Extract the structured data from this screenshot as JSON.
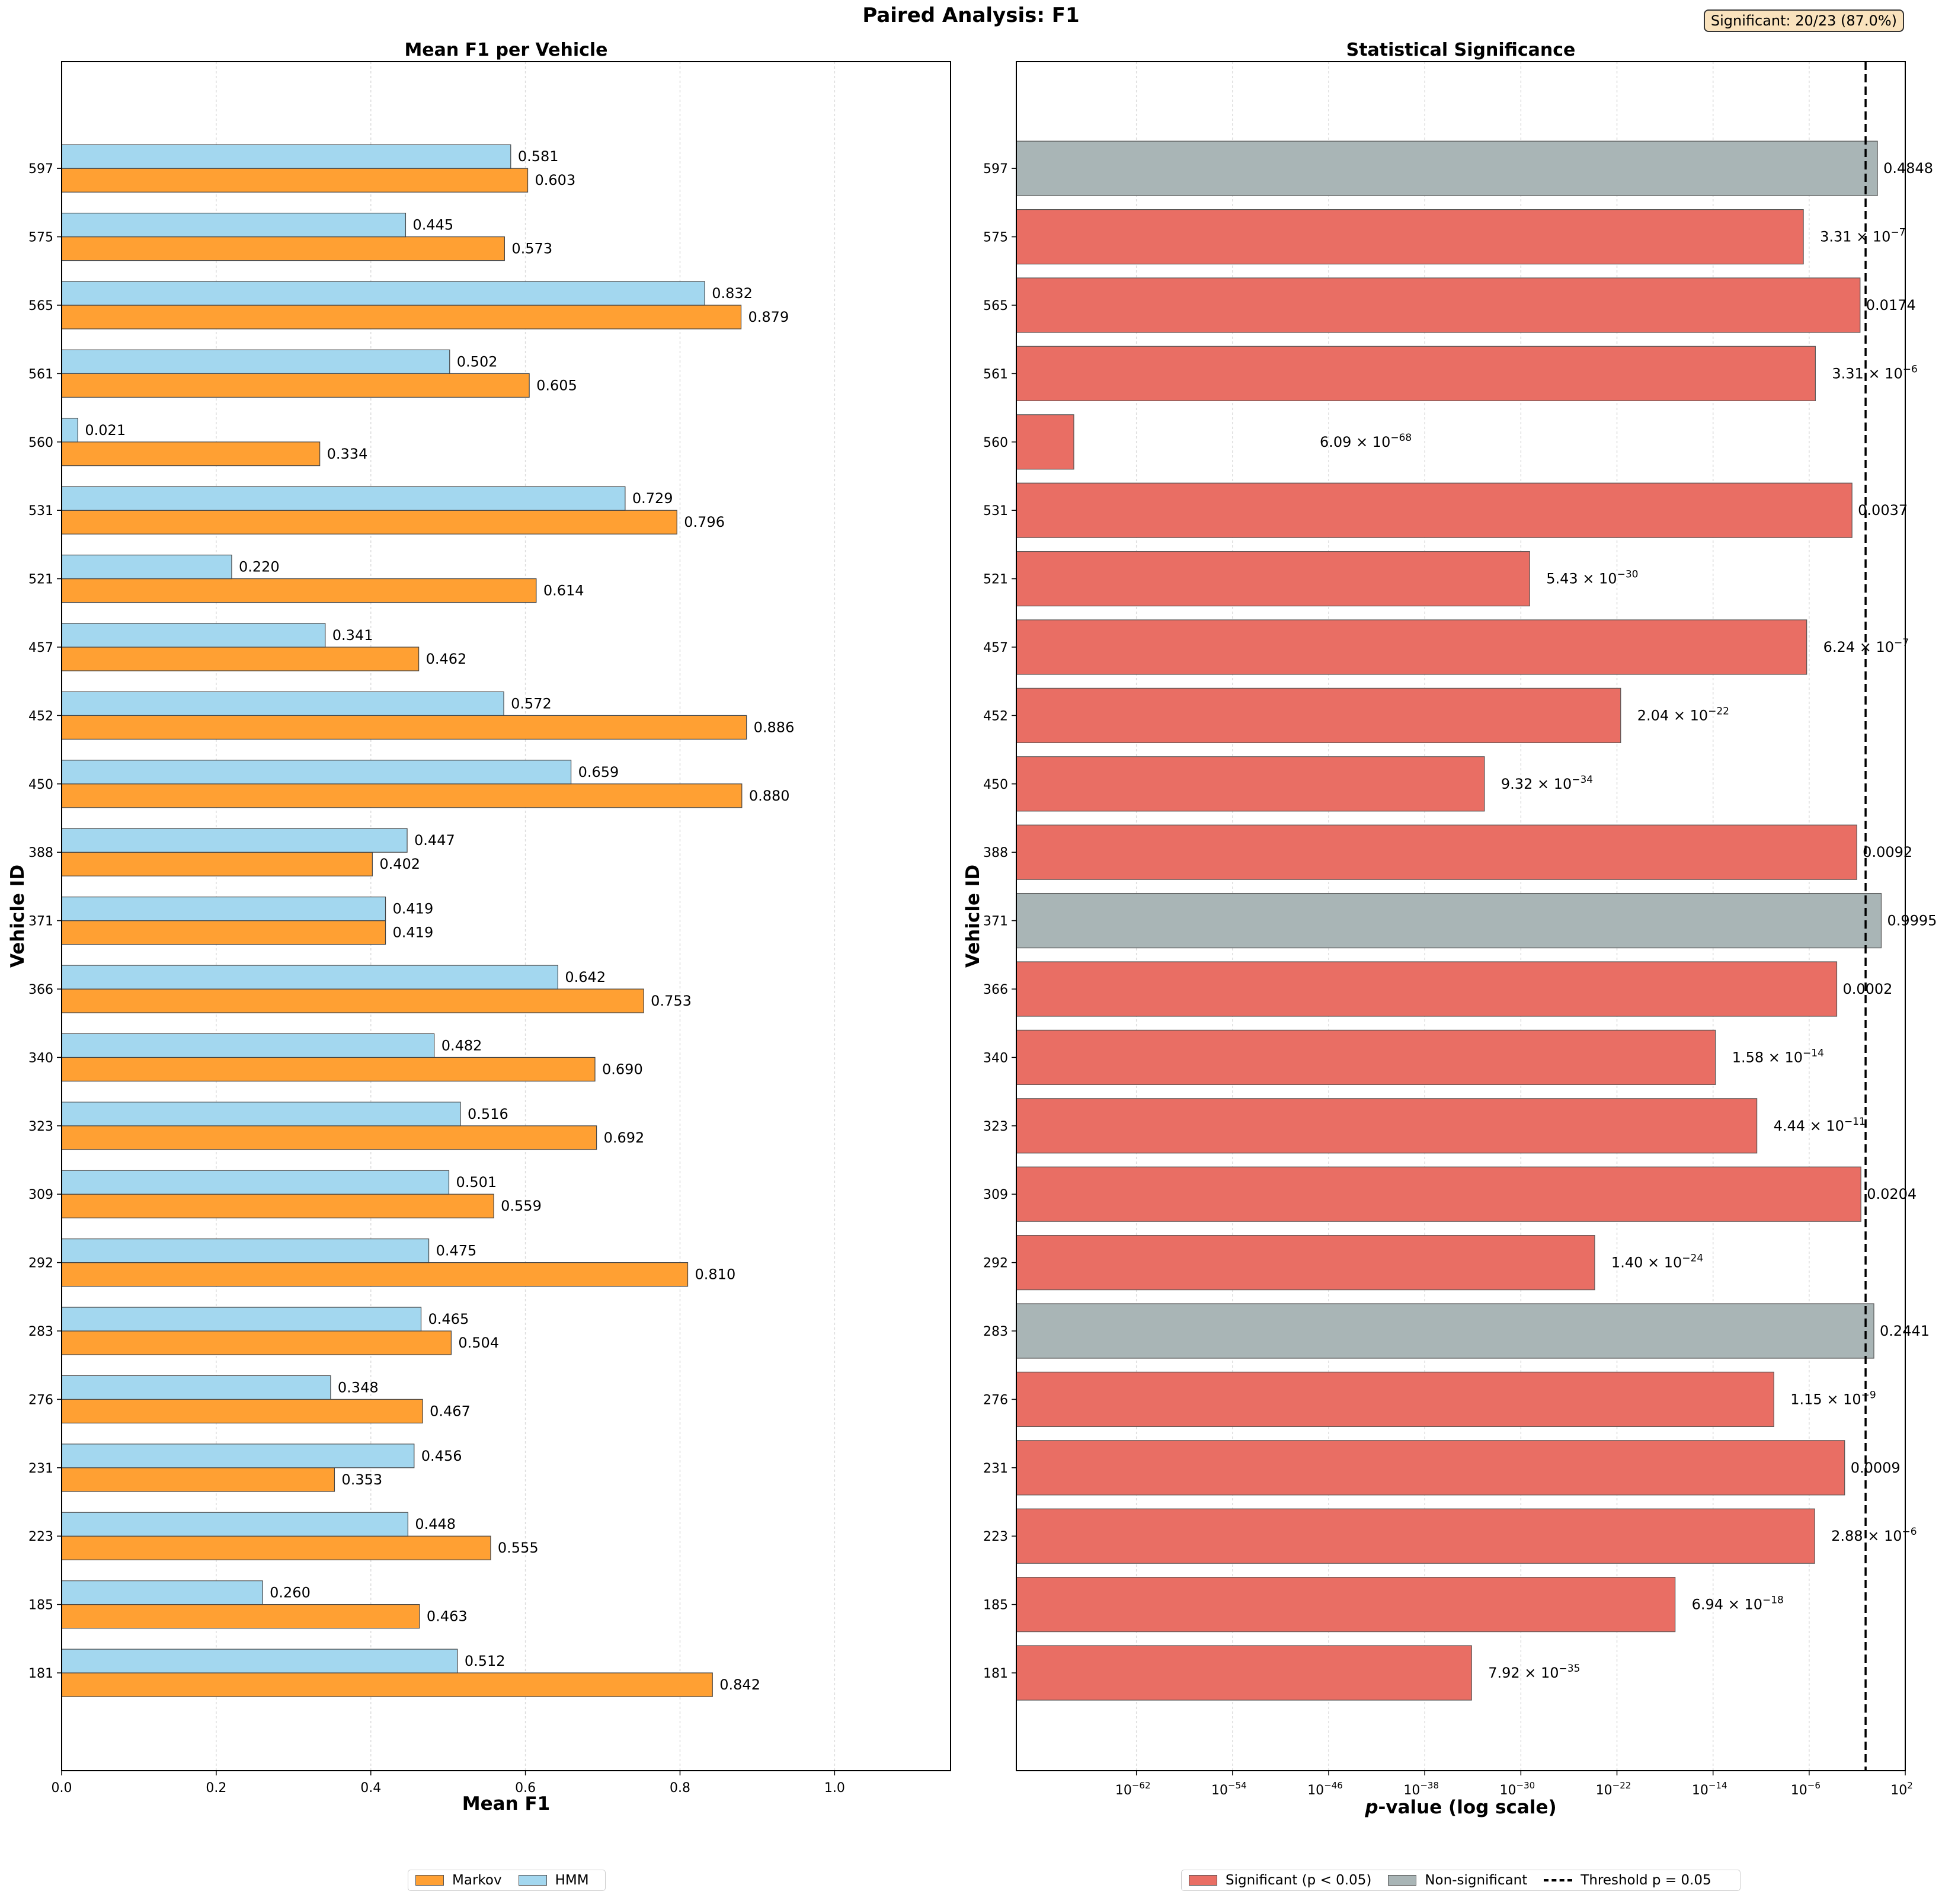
{
  "title": "Paired Analysis: F1",
  "badge": "Significant: 20/23 (87.0%)",
  "colors": {
    "markov": "#ffa033",
    "hmm": "#a3d7ef",
    "significant": "#e96e64",
    "nonsignificant": "#a9b5b6",
    "threshold": "#000000"
  },
  "legends": {
    "left": [
      {
        "label": "Markov",
        "color": "#ffa033"
      },
      {
        "label": "HMM",
        "color": "#a3d7ef"
      }
    ],
    "right": {
      "significant": "Significant (p < 0.05)",
      "nonsignificant": "Non-significant",
      "threshold": "Threshold p = 0.05"
    }
  },
  "chart_data": [
    {
      "type": "bar",
      "orientation": "horizontal",
      "title": "Mean F1 per Vehicle",
      "xlabel": "Mean F1",
      "ylabel": "Vehicle ID",
      "xlim": [
        0,
        1.15
      ],
      "xticks": [
        "0.0",
        "0.2",
        "0.4",
        "0.6",
        "0.8",
        "1.0"
      ],
      "grid": "vertical dotted",
      "legend": "bottom-center",
      "categories": [
        "181",
        "185",
        "223",
        "231",
        "276",
        "283",
        "292",
        "309",
        "323",
        "340",
        "366",
        "371",
        "388",
        "450",
        "452",
        "457",
        "521",
        "531",
        "560",
        "561",
        "565",
        "575",
        "597"
      ],
      "series": [
        {
          "name": "Markov",
          "values": [
            0.842,
            0.463,
            0.555,
            0.353,
            0.467,
            0.504,
            0.81,
            0.559,
            0.692,
            0.69,
            0.753,
            0.419,
            0.402,
            0.88,
            0.886,
            0.462,
            0.614,
            0.796,
            0.334,
            0.605,
            0.879,
            0.573,
            0.603
          ],
          "labels": [
            "0.842",
            "0.463",
            "0.555",
            "0.353",
            "0.467",
            "0.504",
            "0.810",
            "0.559",
            "0.692",
            "0.690",
            "0.753",
            "0.419",
            "0.402",
            "0.880",
            "0.886",
            "0.462",
            "0.614",
            "0.796",
            "0.334",
            "0.605",
            "0.879",
            "0.573",
            "0.603"
          ]
        },
        {
          "name": "HMM",
          "values": [
            0.512,
            0.26,
            0.448,
            0.456,
            0.348,
            0.465,
            0.475,
            0.501,
            0.516,
            0.482,
            0.642,
            0.419,
            0.447,
            0.659,
            0.572,
            0.341,
            0.22,
            0.729,
            0.021,
            0.502,
            0.832,
            0.445,
            0.581
          ],
          "labels": [
            "0.512",
            "0.260",
            "0.448",
            "0.456",
            "0.348",
            "0.465",
            "0.475",
            "0.501",
            "0.516",
            "0.482",
            "0.642",
            "0.419",
            "0.447",
            "0.659",
            "0.572",
            "0.341",
            "0.220",
            "0.729",
            "0.021",
            "0.502",
            "0.832",
            "0.445",
            "0.581"
          ]
        }
      ]
    },
    {
      "type": "bar",
      "orientation": "horizontal",
      "title": "Statistical Significance",
      "xlabel": "p-value (log scale)",
      "ylabel": "Vehicle ID",
      "xscale": "log",
      "xlim_log10": [
        -72,
        2
      ],
      "xticks_exp": [
        -62,
        -54,
        -46,
        -38,
        -30,
        -22,
        -14,
        -6,
        2
      ],
      "threshold": 0.05,
      "grid": "vertical dotted",
      "legend": "bottom-center",
      "categories": [
        "181",
        "185",
        "223",
        "231",
        "276",
        "283",
        "292",
        "309",
        "323",
        "340",
        "366",
        "371",
        "388",
        "450",
        "452",
        "457",
        "521",
        "531",
        "560",
        "561",
        "565",
        "575",
        "597"
      ],
      "p_values": [
        7.92e-35,
        6.94e-18,
        2.88e-06,
        0.0009,
        1.15e-09,
        0.2441,
        1.4e-24,
        0.0204,
        4.44e-11,
        1.58e-14,
        0.0002,
        0.9995,
        0.0092,
        9.32e-34,
        2.04e-22,
        6.24e-07,
        5.43e-30,
        0.0037,
        6.09e-68,
        3.31e-06,
        0.0174,
        3.31e-07,
        0.4848
      ],
      "significant": [
        true,
        true,
        true,
        true,
        true,
        false,
        true,
        true,
        true,
        true,
        true,
        false,
        true,
        true,
        true,
        true,
        true,
        true,
        true,
        true,
        true,
        true,
        false
      ],
      "labels": [
        {
          "m": "7.92",
          "e": "−35"
        },
        {
          "m": "6.94",
          "e": "−18"
        },
        {
          "m": "2.88",
          "e": "−6"
        },
        {
          "m": "0.0009"
        },
        {
          "m": "1.15",
          "e": "−9"
        },
        {
          "m": "0.2441"
        },
        {
          "m": "1.40",
          "e": "−24"
        },
        {
          "m": "0.0204"
        },
        {
          "m": "4.44",
          "e": "−11"
        },
        {
          "m": "1.58",
          "e": "−14"
        },
        {
          "m": "0.0002"
        },
        {
          "m": "0.9995"
        },
        {
          "m": "0.0092"
        },
        {
          "m": "9.32",
          "e": "−34"
        },
        {
          "m": "2.04",
          "e": "−22"
        },
        {
          "m": "6.24",
          "e": "−7"
        },
        {
          "m": "5.43",
          "e": "−30"
        },
        {
          "m": "0.0037"
        },
        {
          "m": "6.09",
          "e": "−68"
        },
        {
          "m": "3.31",
          "e": "−6"
        },
        {
          "m": "0.0174"
        },
        {
          "m": "3.31",
          "e": "−7"
        },
        {
          "m": "0.4848"
        }
      ]
    }
  ]
}
